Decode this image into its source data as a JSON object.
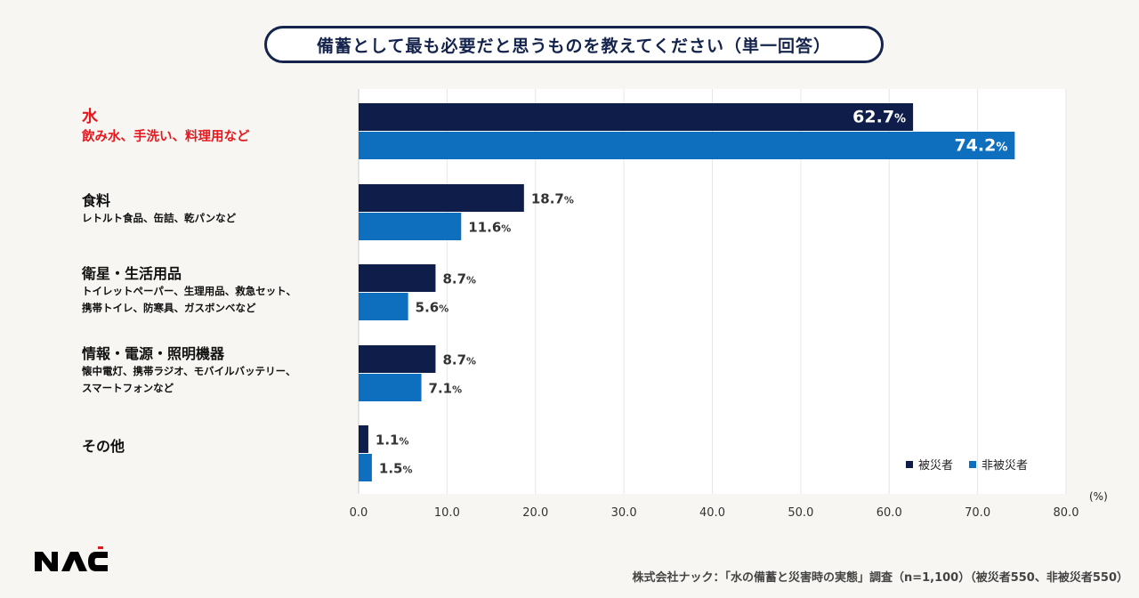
{
  "title": "備蓄として最も必要だと思うものを教えてください（単一回答）",
  "categories": [
    {
      "main": "水",
      "sub": [
        "飲み水、手洗い、料理用など"
      ],
      "highlight": true
    },
    {
      "main": "食料",
      "sub": [
        "レトルト食品、缶詰、乾パンなど"
      ],
      "highlight": false
    },
    {
      "main": "衛星・生活用品",
      "sub": [
        "トイレットペーパー、生理用品、救急セット、",
        "携帯トイレ、防寒具、ガスボンベなど"
      ],
      "highlight": false
    },
    {
      "main": "情報・電源・照明機器",
      "sub": [
        "懐中電灯、携帯ラジオ、モバイルバッテリー、",
        "スマートフォンなど"
      ],
      "highlight": false
    },
    {
      "main": "その他",
      "sub": [],
      "highlight": false
    }
  ],
  "chart_data": {
    "type": "bar",
    "orientation": "horizontal",
    "title": "備蓄として最も必要だと思うものを教えてください（単一回答）",
    "categories": [
      "水",
      "食料",
      "衛星・生活用品",
      "情報・電源・照明機器",
      "その他"
    ],
    "series": [
      {
        "name": "被災者",
        "color": "#0f1d4a",
        "values": [
          62.7,
          18.7,
          8.7,
          8.7,
          1.1
        ]
      },
      {
        "name": "非被災者",
        "color": "#0f6fbf",
        "values": [
          74.2,
          11.6,
          5.6,
          7.1,
          1.5
        ]
      }
    ],
    "xlim": [
      0,
      80
    ],
    "xticks": [
      "0.0",
      "10.0",
      "20.0",
      "30.0",
      "40.0",
      "50.0",
      "60.0",
      "70.0",
      "80.0"
    ],
    "unit_label": "(%)",
    "value_suffix": "%",
    "grid": true,
    "legend": "bottom-right"
  },
  "legend": {
    "s1": "被災者",
    "s2": "非被災者"
  },
  "logo_text": "NAC",
  "source": "株式会社ナック：「水の備蓄と災害時の実態」調査（n=1,100）（被災者550、非被災者550）"
}
